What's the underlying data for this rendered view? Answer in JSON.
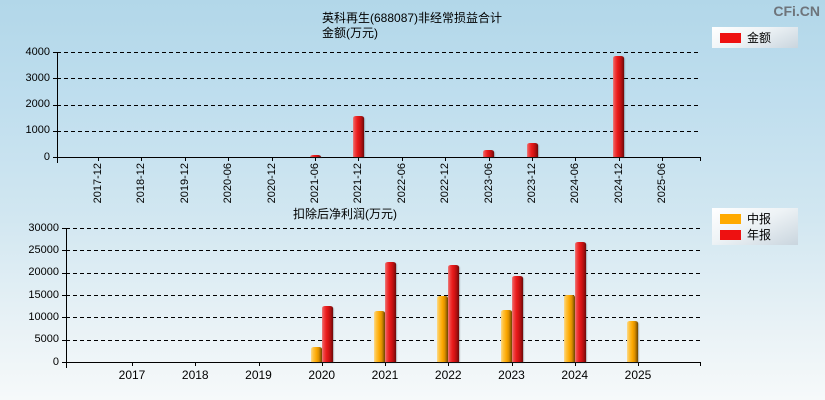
{
  "watermark": "CFi.CN",
  "chart_data": [
    {
      "type": "bar",
      "title": "英科再生(688087)非经常损益合计",
      "subtitle": "金额(万元)",
      "ylim": [
        0,
        4000
      ],
      "yticks": [
        0,
        1000,
        2000,
        3000,
        4000
      ],
      "grid": "horizontal-dashed",
      "legend_position": "top-right",
      "legend": [
        {
          "label": "金额",
          "color": "#ee1111"
        }
      ],
      "categories": [
        "2017-12",
        "2018-12",
        "2019-12",
        "2020-06",
        "2020-12",
        "2021-06",
        "2021-12",
        "2022-06",
        "2022-12",
        "2023-06",
        "2023-12",
        "2024-06",
        "2024-12",
        "2025-06"
      ],
      "series": [
        {
          "name": "金额",
          "color": "#ee1111",
          "values": [
            null,
            null,
            null,
            null,
            null,
            80,
            1550,
            null,
            null,
            250,
            550,
            null,
            3850,
            null
          ]
        }
      ]
    },
    {
      "type": "bar",
      "title": "扣除后净利润(万元)",
      "ylim": [
        0,
        30000
      ],
      "yticks": [
        0,
        5000,
        10000,
        15000,
        20000,
        25000,
        30000
      ],
      "grid": "horizontal-dashed",
      "legend_position": "top-right",
      "legend": [
        {
          "label": "中报",
          "color": "#ffaa00"
        },
        {
          "label": "年报",
          "color": "#ee1111"
        }
      ],
      "categories": [
        "2017",
        "2018",
        "2019",
        "2020",
        "2021",
        "2022",
        "2023",
        "2024",
        "2025"
      ],
      "series": [
        {
          "name": "中报",
          "color": "#ffaa00",
          "values": [
            null,
            null,
            null,
            3400,
            11400,
            14800,
            11700,
            15000,
            9200
          ]
        },
        {
          "name": "年报",
          "color": "#ee1111",
          "values": [
            null,
            null,
            null,
            12600,
            22500,
            21800,
            19200,
            26900,
            null
          ]
        }
      ]
    }
  ]
}
